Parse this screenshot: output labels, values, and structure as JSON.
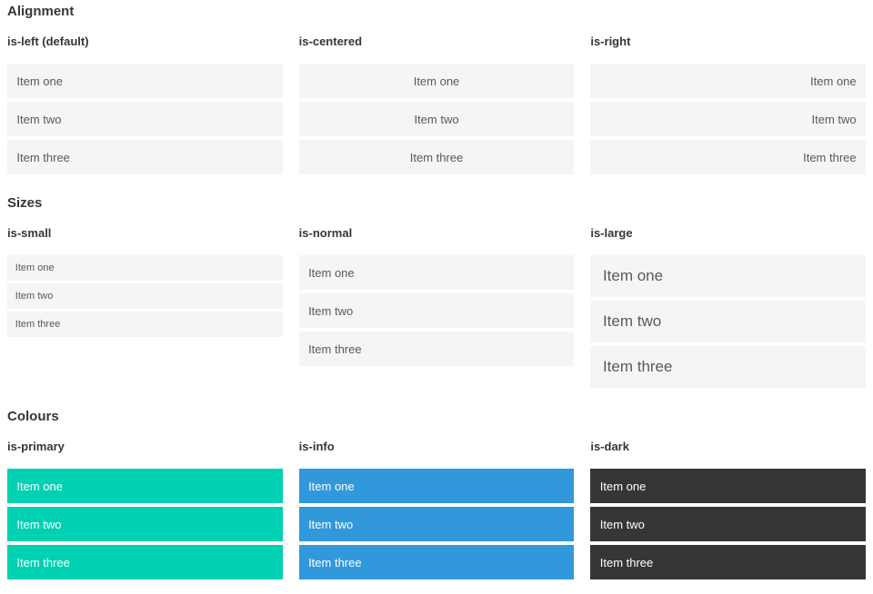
{
  "colors": {
    "primary": "#00d1b2",
    "info": "#3298dc",
    "dark": "#363636",
    "item-bg": "#f5f5f5",
    "item-text": "#555a5f",
    "heading": "#363636"
  },
  "sections": [
    {
      "title": "Alignment",
      "examples": [
        {
          "label": "is-left (default)",
          "items": [
            "Item one",
            "Item two",
            "Item three"
          ]
        },
        {
          "label": "is-centered",
          "items": [
            "Item one",
            "Item two",
            "Item three"
          ]
        },
        {
          "label": "is-right",
          "items": [
            "Item one",
            "Item two",
            "Item three"
          ]
        }
      ]
    },
    {
      "title": "Sizes",
      "examples": [
        {
          "label": "is-small",
          "items": [
            "Item one",
            "Item two",
            "Item three"
          ]
        },
        {
          "label": "is-normal",
          "items": [
            "Item one",
            "Item two",
            "Item three"
          ]
        },
        {
          "label": "is-large",
          "items": [
            "Item one",
            "Item two",
            "Item three"
          ]
        }
      ]
    },
    {
      "title": "Colours",
      "examples": [
        {
          "label": "is-primary",
          "items": [
            "Item one",
            "Item two",
            "Item three"
          ]
        },
        {
          "label": "is-info",
          "items": [
            "Item one",
            "Item two",
            "Item three"
          ]
        },
        {
          "label": "is-dark",
          "items": [
            "Item one",
            "Item two",
            "Item three"
          ]
        }
      ]
    }
  ]
}
